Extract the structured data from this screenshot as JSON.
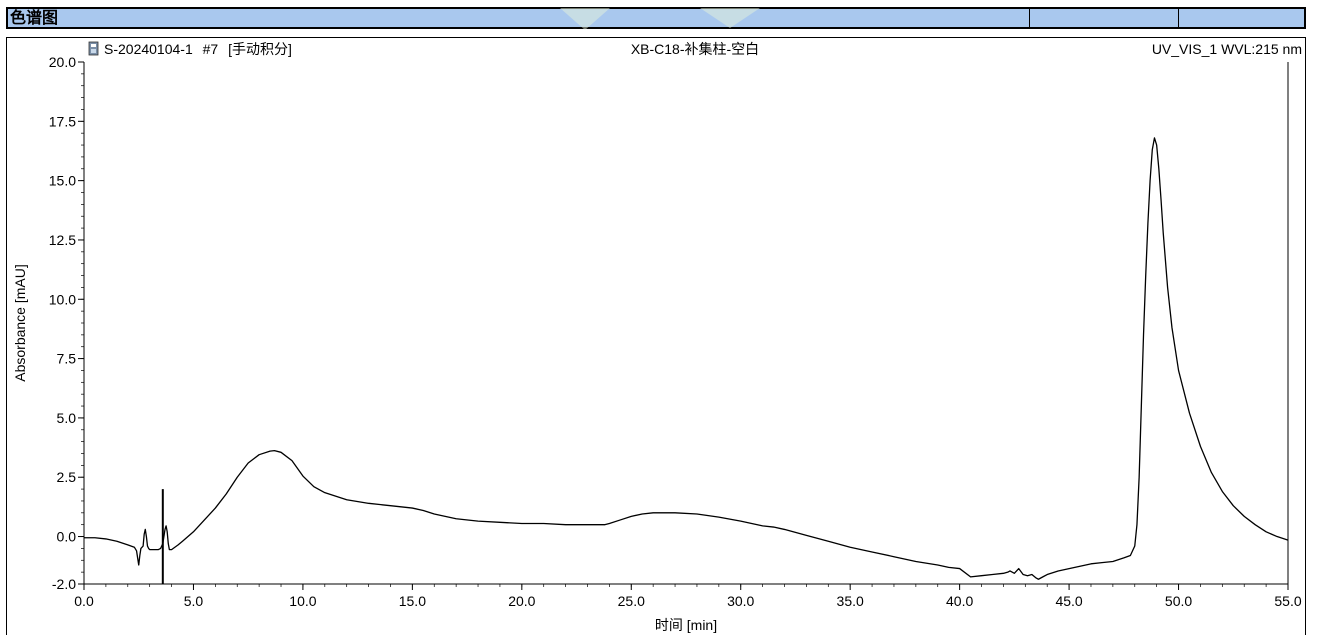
{
  "header": {
    "title": "色谱图"
  },
  "chart_data": {
    "type": "line",
    "sample": "S-20240104-1",
    "injection": "#7",
    "integration": "[手动积分]",
    "title": "XB-C18-补集柱-空白",
    "channel": "UV_VIS_1 WVL:215 nm",
    "xlabel": "时间 [min]",
    "ylabel": "Absorbance [mAU]",
    "xlim": [
      0,
      55
    ],
    "ylim": [
      -2.0,
      20.0
    ],
    "xticks": [
      "0.0",
      "5.0",
      "10.0",
      "15.0",
      "20.0",
      "25.0",
      "30.0",
      "35.0",
      "40.0",
      "45.0",
      "50.0",
      "55.0"
    ],
    "yticks": [
      "-2.0",
      "0.0",
      "2.5",
      "5.0",
      "7.5",
      "10.0",
      "12.5",
      "15.0",
      "17.5",
      "20.0"
    ],
    "grid": false,
    "markers": [
      {
        "x": 3.6,
        "y_low": -2.0,
        "y_high": 2.0
      }
    ],
    "series": [
      {
        "x": [
          0,
          0.5,
          1.0,
          1.5,
          2.0,
          2.3,
          2.4,
          2.45,
          2.5,
          2.55,
          2.6,
          2.7,
          2.75,
          2.8,
          2.85,
          2.9,
          2.95,
          3.0,
          3.2,
          3.4,
          3.5,
          3.6,
          3.7,
          3.75,
          3.8,
          3.85,
          3.9,
          4.0,
          4.3,
          4.5,
          5.0,
          5.5,
          6.0,
          6.5,
          7.0,
          7.5,
          8.0,
          8.5,
          8.7,
          9.0,
          9.5,
          10.0,
          10.5,
          11.0,
          12.0,
          13.0,
          14.0,
          15.0,
          15.5,
          16.0,
          17.0,
          18.0,
          19.0,
          20.0,
          21.0,
          22.0,
          23.0,
          23.8,
          24.0,
          24.5,
          25.0,
          25.5,
          26.0,
          26.5,
          27.0,
          28.0,
          29.0,
          30.0,
          30.5,
          31.0,
          31.5,
          32.0,
          33.0,
          34.0,
          35.0,
          36.0,
          37.0,
          38.0,
          39.0,
          39.5,
          40.0,
          40.5,
          41.0,
          41.5,
          42.0,
          42.2,
          42.3,
          42.5,
          42.7,
          42.9,
          43.1,
          43.3,
          43.5,
          43.6,
          43.8,
          44.0,
          44.5,
          45.0,
          45.5,
          46.0,
          46.5,
          47.0,
          47.5,
          47.8,
          48.0,
          48.1,
          48.2,
          48.3,
          48.4,
          48.5,
          48.6,
          48.7,
          48.8,
          48.9,
          49.0,
          49.1,
          49.2,
          49.3,
          49.5,
          49.7,
          50.0,
          50.5,
          51.0,
          51.5,
          52.0,
          52.5,
          53.0,
          53.5,
          54.0,
          54.5,
          55.0
        ],
        "y": [
          -0.05,
          -0.05,
          -0.1,
          -0.2,
          -0.35,
          -0.45,
          -0.6,
          -0.9,
          -1.2,
          -0.8,
          -0.5,
          -0.4,
          0.1,
          0.3,
          0.0,
          -0.4,
          -0.5,
          -0.55,
          -0.55,
          -0.55,
          -0.5,
          -0.3,
          0.3,
          0.45,
          0.2,
          -0.3,
          -0.55,
          -0.55,
          -0.35,
          -0.2,
          0.2,
          0.7,
          1.2,
          1.8,
          2.5,
          3.1,
          3.45,
          3.6,
          3.62,
          3.55,
          3.2,
          2.55,
          2.1,
          1.85,
          1.55,
          1.4,
          1.3,
          1.2,
          1.1,
          0.95,
          0.75,
          0.65,
          0.6,
          0.55,
          0.55,
          0.5,
          0.5,
          0.5,
          0.55,
          0.7,
          0.85,
          0.95,
          1.0,
          1.0,
          1.0,
          0.95,
          0.82,
          0.65,
          0.55,
          0.45,
          0.4,
          0.3,
          0.05,
          -0.2,
          -0.45,
          -0.65,
          -0.85,
          -1.05,
          -1.2,
          -1.3,
          -1.35,
          -1.7,
          -1.65,
          -1.6,
          -1.55,
          -1.5,
          -1.45,
          -1.55,
          -1.35,
          -1.6,
          -1.65,
          -1.6,
          -1.75,
          -1.8,
          -1.7,
          -1.6,
          -1.45,
          -1.35,
          -1.25,
          -1.15,
          -1.1,
          -1.05,
          -0.9,
          -0.8,
          -0.4,
          0.5,
          2.5,
          5.5,
          8.5,
          11.0,
          13.2,
          15.0,
          16.3,
          16.8,
          16.5,
          15.5,
          14.2,
          12.8,
          10.5,
          8.8,
          7.0,
          5.2,
          3.8,
          2.7,
          1.9,
          1.3,
          0.85,
          0.5,
          0.2,
          0.0,
          -0.15
        ]
      }
    ]
  },
  "colors": {
    "header_bg": "#a9c8ee",
    "line": "#000000",
    "watermark": "#e6f1d9"
  },
  "icons": {
    "file_icon": "document-icon"
  }
}
